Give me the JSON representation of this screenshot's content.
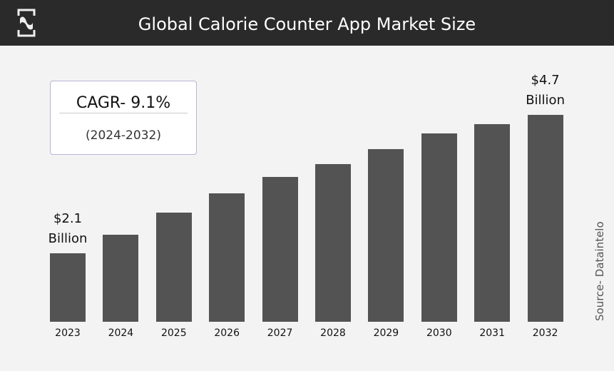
{
  "header": {
    "title": "Global Calorie Counter App Market Size"
  },
  "cagr": {
    "value": "CAGR- 9.1%",
    "period": "(2024-2032)"
  },
  "source": "Source- Dataintelo",
  "chart_data": {
    "type": "bar",
    "title": "Global Calorie Counter App Market Size",
    "categories": [
      "2023",
      "2024",
      "2025",
      "2026",
      "2027",
      "2028",
      "2029",
      "2030",
      "2031",
      "2032"
    ],
    "values": [
      2.1,
      2.45,
      2.86,
      3.23,
      3.53,
      3.78,
      4.06,
      4.35,
      4.53,
      4.7
    ],
    "unit": "USD Billion",
    "ylim": [
      0.81,
      4.7
    ],
    "annotations": [
      {
        "category": "2023",
        "line1": "$2.1",
        "line2": "Billion"
      },
      {
        "category": "2032",
        "line1": "$4.7",
        "line2": "Billion"
      }
    ],
    "grid": false
  }
}
